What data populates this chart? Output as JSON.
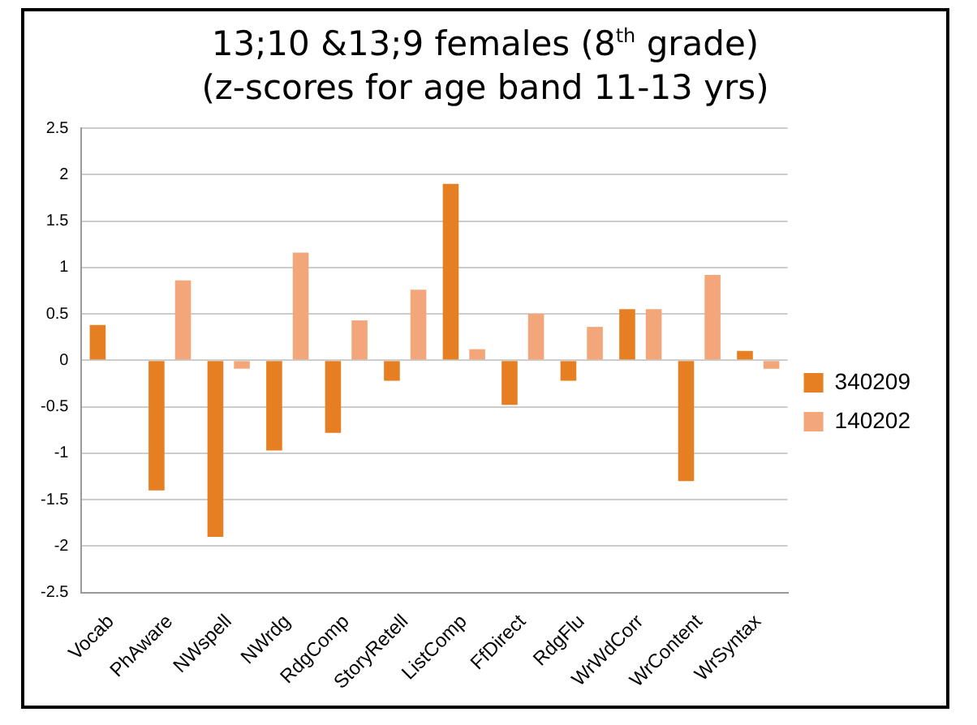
{
  "chart_data": {
    "type": "bar",
    "title": "13;10 &13;9 females (8$^{th}$ grade)\n(z-scores for age band 11-13 yrs)",
    "categories": [
      "Vocab",
      "PhAware",
      "NWspell",
      "NWrdg",
      "RdgComp",
      "StoryRetell",
      "ListComp",
      "FfDirect",
      "RdgFlu",
      "WrWdCorr",
      "WrContent",
      "WrSyntax"
    ],
    "series": [
      {
        "name": "340209",
        "color": "#e67e22",
        "values": [
          0.38,
          -1.4,
          -1.9,
          -0.97,
          -0.78,
          -0.22,
          1.9,
          -0.48,
          -0.22,
          0.55,
          -1.3,
          0.1
        ]
      },
      {
        "name": "140202",
        "color": "#f2a679",
        "values": [
          0,
          0.86,
          -0.09,
          1.16,
          0.43,
          0.76,
          0.12,
          0.5,
          0.36,
          0.55,
          0.92,
          -0.09
        ]
      }
    ],
    "ylim": [
      -2.5,
      2.5
    ],
    "yticks": [
      -2.5,
      -2,
      -1.5,
      -1,
      -0.5,
      0,
      0.5,
      1,
      1.5,
      2,
      2.5
    ],
    "grid": "y",
    "legend": "right"
  }
}
